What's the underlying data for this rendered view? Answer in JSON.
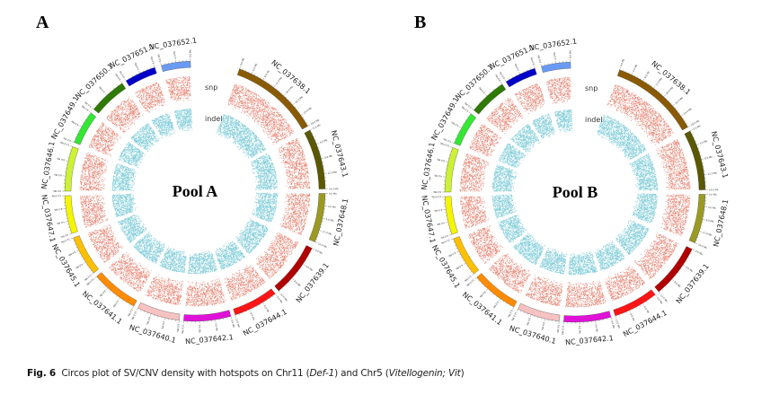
{
  "panels": [
    {
      "letter": "A",
      "center_label": "Pool A",
      "tracks": [
        "snp",
        "indel"
      ]
    },
    {
      "letter": "B",
      "center_label": "Pool B",
      "tracks": [
        "snp",
        "indel"
      ]
    }
  ],
  "track_colors": {
    "snp": "#E8806F",
    "indel": "#7FCCD8"
  },
  "tick_unit": "Mb",
  "tick_step_mb": 4,
  "chromosomes": [
    {
      "name": "NC_037638.1",
      "color": "#8A5A00",
      "max_mb": 28
    },
    {
      "name": "NC_037643.1",
      "color": "#5A5800",
      "max_mb": 16
    },
    {
      "name": "NC_037648.1",
      "color": "#9A9A22",
      "max_mb": 16
    },
    {
      "name": "NC_037639.1",
      "color": "#B00000",
      "max_mb": 12
    },
    {
      "name": "NC_037644.1",
      "color": "#FF1515",
      "max_mb": 12
    },
    {
      "name": "NC_037642.1",
      "color": "#E012D8",
      "max_mb": 12
    },
    {
      "name": "NC_037640.1",
      "color": "#F6C2C2",
      "max_mb": 12
    },
    {
      "name": "NC_037641.1",
      "color": "#FF8C00",
      "max_mb": 12
    },
    {
      "name": "NC_037645.1",
      "color": "#FFC000",
      "max_mb": 12
    },
    {
      "name": "NC_037647.1",
      "color": "#F5F500",
      "max_mb": 12
    },
    {
      "name": "NC_037646.1",
      "color": "#CCF233",
      "max_mb": 12
    },
    {
      "name": "NC_037649.1",
      "color": "#33E833",
      "max_mb": 8
    },
    {
      "name": "NC_037650.1",
      "color": "#2F7A00",
      "max_mb": 8
    },
    {
      "name": "NC_037651.1",
      "color": "#0000C8",
      "max_mb": 8
    },
    {
      "name": "NC_037652.1",
      "color": "#6A9AF5",
      "max_mb": 8
    }
  ],
  "caption": {
    "label": "Fig. 6",
    "text1": "Circos plot of SV/CNV density with hotspots on Chr11 (",
    "italic1": "Def-1",
    "text2": ") and Chr5 (",
    "italic2": "Vitellogenin; Vit",
    "text3": ")"
  }
}
